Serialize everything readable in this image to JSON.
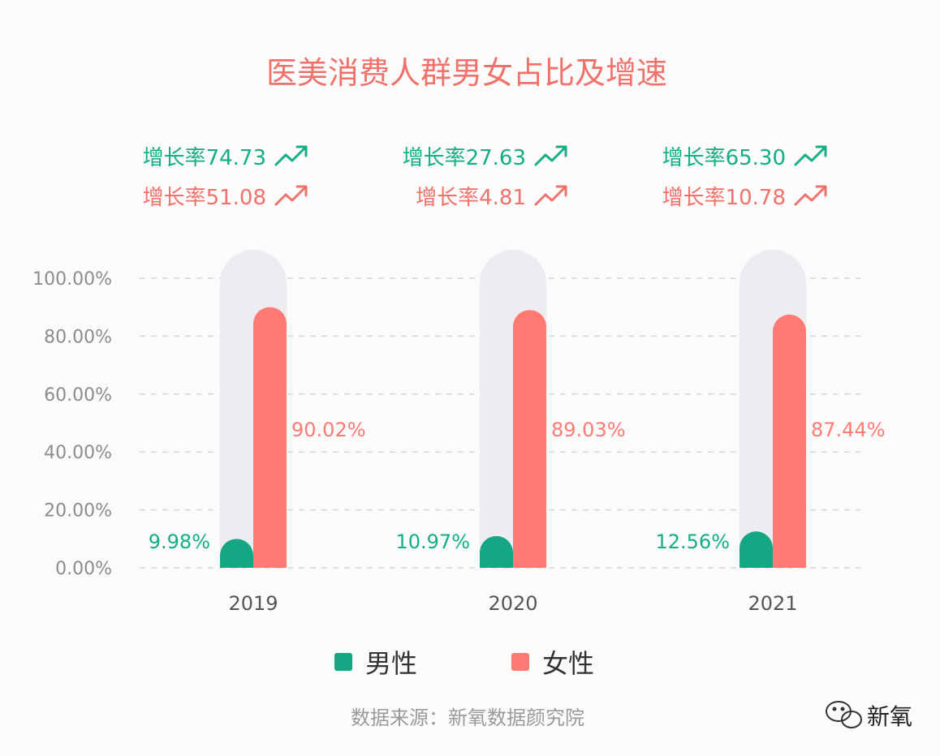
{
  "colors": {
    "male": "#13a783",
    "female": "#ff7a72",
    "title": "#f0726b",
    "track": "#ececf1",
    "male_rate": "#12ae86",
    "female_rate": "#f0726b"
  },
  "chart_data": {
    "type": "bar",
    "title": "医美消费人群男女占比及增速",
    "categories": [
      "2019",
      "2020",
      "2021"
    ],
    "series": [
      {
        "name": "男性",
        "values": [
          9.98,
          10.97,
          12.56
        ],
        "labels": [
          "9.98%",
          "10.97%",
          "12.56%"
        ]
      },
      {
        "name": "女性",
        "values": [
          90.02,
          89.03,
          87.44
        ],
        "labels": [
          "90.02%",
          "89.03%",
          "87.44%"
        ]
      }
    ],
    "yticks": [
      "100.00%",
      "80.00%",
      "60.00%",
      "40.00%",
      "20.00%",
      "0.00%"
    ],
    "ylim": [
      0,
      100
    ],
    "growth_rates": {
      "male": [
        "增长率74.73",
        "增长率27.63",
        "增长率65.30"
      ],
      "female": [
        "增长率51.08",
        "增长率4.81",
        "增长率10.78"
      ]
    },
    "legend": [
      "男性",
      "女性"
    ],
    "legend_position": "bottom",
    "grid": "dashed-horizontal"
  },
  "source": "数据来源：新氧数据颜究院",
  "brand": "新氧",
  "icons": {
    "trend": "trend-up-arrow-icon",
    "brand": "wechat-logo-icon"
  }
}
